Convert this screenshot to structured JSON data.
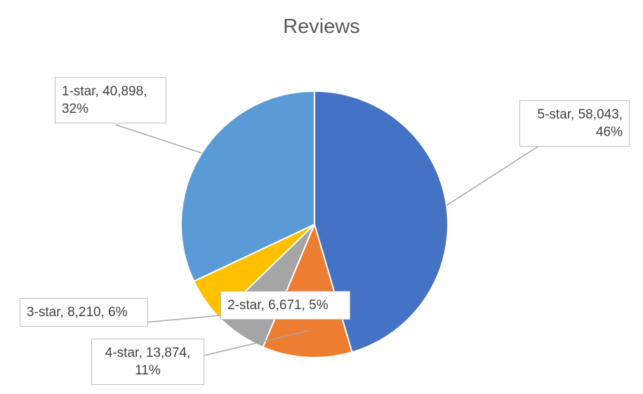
{
  "chart_data": {
    "type": "pie",
    "title": "Reviews",
    "values": [
      58043,
      13874,
      8210,
      6671,
      40898
    ],
    "value_labels": [
      "5-star, 58,043, 46%",
      "4-star, 13,874, 11%",
      "3-star, 8,210, 6%",
      "2-star, 6,671, 5%",
      "1-star, 40,898, 32%"
    ],
    "colors": [
      "#4472c4",
      "#ed7d31",
      "#a5a5a5",
      "#ffc000",
      "#5b9bd5"
    ]
  }
}
